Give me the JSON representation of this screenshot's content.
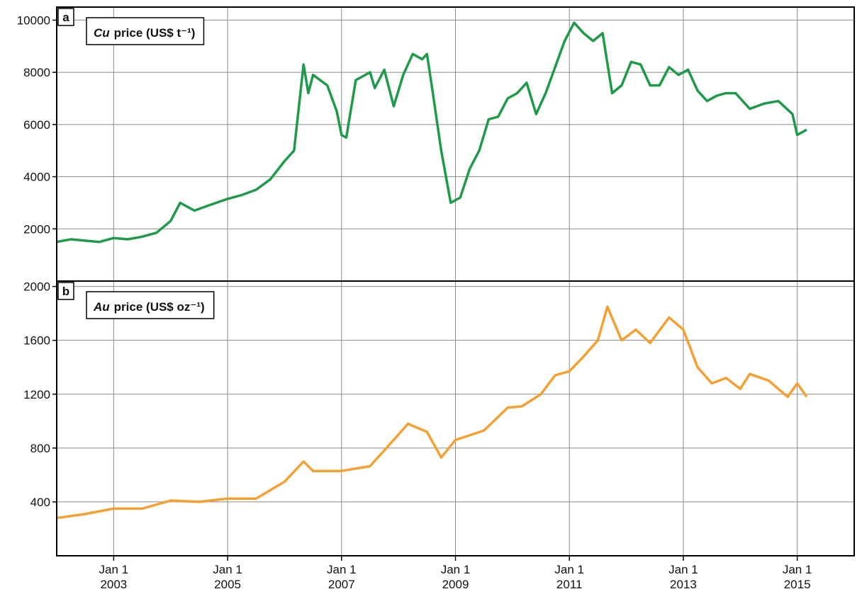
{
  "chart_data": [
    {
      "type": "line",
      "label": "a",
      "element": "Cu",
      "title": "price (US$ t⁻¹)",
      "ylim": [
        0,
        10500
      ],
      "yticks": [
        2000,
        4000,
        6000,
        8000,
        10000
      ],
      "grid": true,
      "x": [
        "2002-01",
        "2002-04",
        "2002-07",
        "2002-10",
        "2003-01",
        "2003-04",
        "2003-07",
        "2003-10",
        "2004-01",
        "2004-03",
        "2004-06",
        "2004-09",
        "2005-01",
        "2005-04",
        "2005-07",
        "2005-10",
        "2006-01",
        "2006-03",
        "2006-05",
        "2006-06",
        "2006-07",
        "2006-10",
        "2006-12",
        "2007-01",
        "2007-02",
        "2007-04",
        "2007-05",
        "2007-07",
        "2007-08",
        "2007-10",
        "2007-12",
        "2008-02",
        "2008-04",
        "2008-06",
        "2008-07",
        "2008-08",
        "2008-10",
        "2008-12",
        "2009-02",
        "2009-04",
        "2009-06",
        "2009-08",
        "2009-10",
        "2009-12",
        "2010-02",
        "2010-04",
        "2010-06",
        "2010-08",
        "2010-10",
        "2010-12",
        "2011-02",
        "2011-04",
        "2011-06",
        "2011-08",
        "2011-10",
        "2011-12",
        "2012-02",
        "2012-04",
        "2012-06",
        "2012-08",
        "2012-10",
        "2012-12",
        "2013-02",
        "2013-04",
        "2013-06",
        "2013-08",
        "2013-10",
        "2013-12",
        "2014-03",
        "2014-06",
        "2014-09",
        "2014-12",
        "2015-01",
        "2015-03"
      ],
      "series": [
        {
          "name": "Cu",
          "color": "#1f9a4a",
          "values": [
            1500,
            1600,
            1550,
            1500,
            1650,
            1600,
            1700,
            1850,
            2300,
            3000,
            2700,
            2900,
            3150,
            3300,
            3500,
            3900,
            4600,
            5000,
            8300,
            7200,
            7900,
            7500,
            6500,
            5600,
            5500,
            7700,
            7800,
            8000,
            7400,
            8100,
            6700,
            7900,
            8700,
            8500,
            8700,
            7500,
            5000,
            3000,
            3200,
            4300,
            5000,
            6200,
            6300,
            7000,
            7200,
            7600,
            6400,
            7200,
            8200,
            9200,
            9900,
            9500,
            9200,
            9500,
            7200,
            7500,
            8400,
            8300,
            7500,
            7500,
            8200,
            7900,
            8100,
            7300,
            6900,
            7100,
            7200,
            7200,
            6600,
            6800,
            6900,
            6400,
            5600,
            5800
          ]
        }
      ]
    },
    {
      "type": "line",
      "label": "b",
      "element": "Au",
      "title": "price (US$ oz⁻¹)",
      "ylim": [
        0,
        2040
      ],
      "yticks": [
        400,
        800,
        1200,
        1600,
        2000
      ],
      "grid": true,
      "xlim": [
        "2002-01",
        "2016-01"
      ],
      "xticks": [
        {
          "value": "2003-01",
          "label": "Jan 1\n2003"
        },
        {
          "value": "2005-01",
          "label": "Jan 1\n2005"
        },
        {
          "value": "2007-01",
          "label": "Jan 1\n2007"
        },
        {
          "value": "2009-01",
          "label": "Jan 1\n2009"
        },
        {
          "value": "2011-01",
          "label": "Jan 1\n2011"
        },
        {
          "value": "2013-01",
          "label": "Jan 1\n2013"
        },
        {
          "value": "2015-01",
          "label": "Jan 1\n2015"
        }
      ],
      "x": [
        "2002-01",
        "2002-07",
        "2003-01",
        "2003-07",
        "2004-01",
        "2004-07",
        "2005-01",
        "2005-07",
        "2006-01",
        "2006-05",
        "2006-07",
        "2007-01",
        "2007-07",
        "2008-01",
        "2008-03",
        "2008-07",
        "2008-10",
        "2009-01",
        "2009-07",
        "2009-12",
        "2010-03",
        "2010-07",
        "2010-10",
        "2011-01",
        "2011-04",
        "2011-07",
        "2011-09",
        "2011-12",
        "2012-03",
        "2012-06",
        "2012-10",
        "2013-01",
        "2013-04",
        "2013-07",
        "2013-10",
        "2014-01",
        "2014-03",
        "2014-07",
        "2014-11",
        "2015-01",
        "2015-03"
      ],
      "series": [
        {
          "name": "Au",
          "color": "#f5a033",
          "values": [
            280,
            310,
            350,
            350,
            410,
            400,
            425,
            425,
            550,
            700,
            630,
            630,
            665,
            900,
            980,
            920,
            730,
            860,
            930,
            1100,
            1110,
            1200,
            1340,
            1370,
            1480,
            1600,
            1850,
            1600,
            1680,
            1580,
            1770,
            1680,
            1400,
            1280,
            1320,
            1240,
            1350,
            1300,
            1180,
            1280,
            1180
          ]
        }
      ]
    }
  ]
}
